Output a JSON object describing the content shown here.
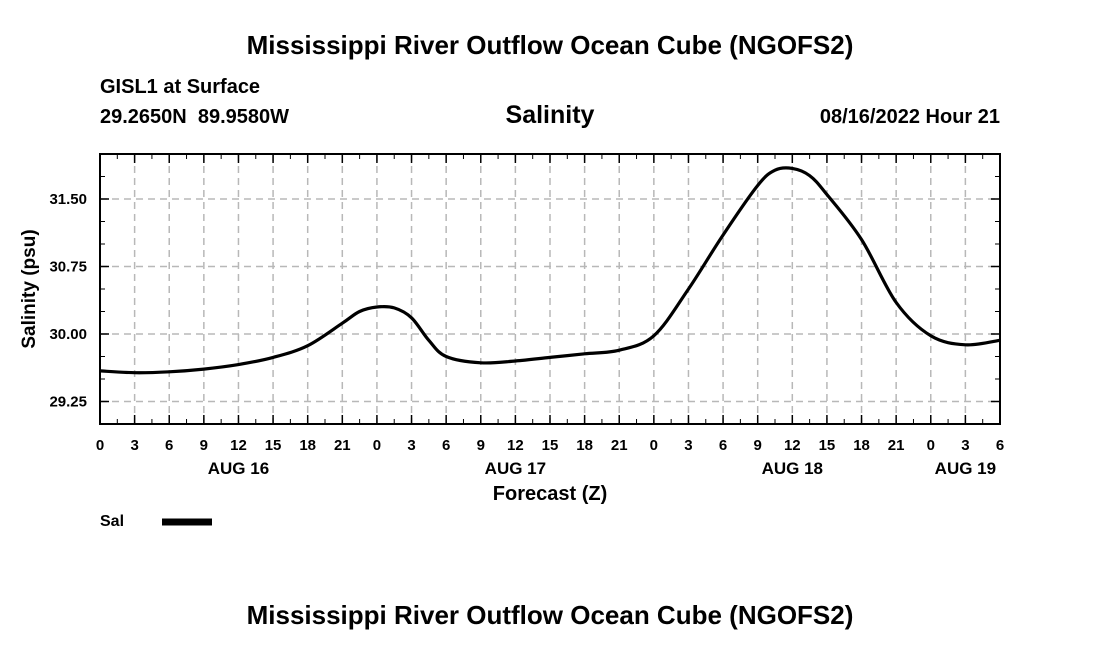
{
  "header": {
    "title": "Mississippi River Outflow Ocean Cube (NGOFS2)",
    "station": "GISL1 at Surface",
    "latitude": "29.2650N",
    "longitude": "89.9580W",
    "variable": "Salinity",
    "datetime": "08/16/2022 Hour 21"
  },
  "footer": {
    "title": "Mississippi River Outflow Ocean Cube (NGOFS2)"
  },
  "chart_data": {
    "type": "line",
    "title": "Salinity",
    "xlabel": "Forecast (Z)",
    "ylabel": "Salinity (psu)",
    "x_unit": "hours since 08/16/2022 00Z",
    "xlim": [
      0,
      78
    ],
    "ylim": [
      29.0,
      32.0
    ],
    "grid": true,
    "y_ticks": [
      29.25,
      30.0,
      30.75,
      31.5
    ],
    "y_tick_labels": [
      "29.25",
      "30.00",
      "30.75",
      "31.50"
    ],
    "x_ticks": [
      0,
      3,
      6,
      9,
      12,
      15,
      18,
      21,
      24,
      27,
      30,
      33,
      36,
      39,
      42,
      45,
      48,
      51,
      54,
      57,
      60,
      63,
      66,
      69,
      72,
      75,
      78
    ],
    "x_tick_labels": [
      "0",
      "3",
      "6",
      "9",
      "12",
      "15",
      "18",
      "21",
      "0",
      "3",
      "6",
      "9",
      "12",
      "15",
      "18",
      "21",
      "0",
      "3",
      "6",
      "9",
      "12",
      "15",
      "18",
      "21",
      "0",
      "3",
      "6"
    ],
    "day_labels": [
      {
        "x": 12,
        "label": "AUG 16"
      },
      {
        "x": 36,
        "label": "AUG 17"
      },
      {
        "x": 60,
        "label": "AUG 18"
      },
      {
        "x": 75,
        "label": "AUG 19"
      }
    ],
    "legend": {
      "position": "bottom-left",
      "entries": [
        {
          "label": "Sal",
          "color": "#000000"
        }
      ]
    },
    "series": [
      {
        "name": "Sal",
        "color": "#000000",
        "x": [
          0,
          3,
          6,
          9,
          12,
          15,
          18,
          21,
          22.5,
          24,
          25.5,
          27,
          28.5,
          30,
          33,
          36,
          39,
          42,
          45,
          48,
          51,
          54,
          57,
          58.5,
          60,
          61.5,
          63,
          66,
          69,
          72,
          75,
          78
        ],
        "y": [
          29.59,
          29.57,
          29.58,
          29.61,
          29.66,
          29.74,
          29.87,
          30.12,
          30.25,
          30.3,
          30.29,
          30.18,
          29.93,
          29.75,
          29.68,
          29.7,
          29.74,
          29.78,
          29.82,
          29.98,
          30.5,
          31.1,
          31.65,
          31.82,
          31.84,
          31.76,
          31.55,
          31.05,
          30.35,
          29.98,
          29.88,
          29.93
        ]
      }
    ]
  }
}
